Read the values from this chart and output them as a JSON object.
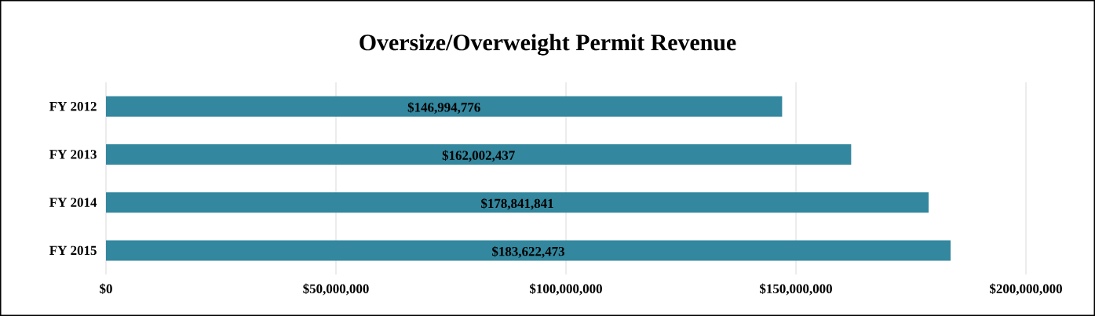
{
  "chart_data": {
    "type": "bar",
    "orientation": "horizontal",
    "title": "Oversize/Overweight Permit Revenue",
    "categories": [
      "FY 2012",
      "FY 2013",
      "FY 2014",
      "FY 2015"
    ],
    "values": [
      146994776,
      162002437,
      178841841,
      183622473
    ],
    "value_labels": [
      "$146,994,776",
      "$162,002,437",
      "$178,841,841",
      "$183,622,473"
    ],
    "color": "#33879e",
    "xlim": [
      0,
      200000000
    ],
    "xticks": [
      {
        "value": 0,
        "label": "$0"
      },
      {
        "value": 50000000,
        "label": "$50,000,000"
      },
      {
        "value": 100000000,
        "label": "$100,000,000"
      },
      {
        "value": 150000000,
        "label": "$150,000,000"
      },
      {
        "value": 200000000,
        "label": "$200,000,000"
      }
    ],
    "grid": "x"
  }
}
